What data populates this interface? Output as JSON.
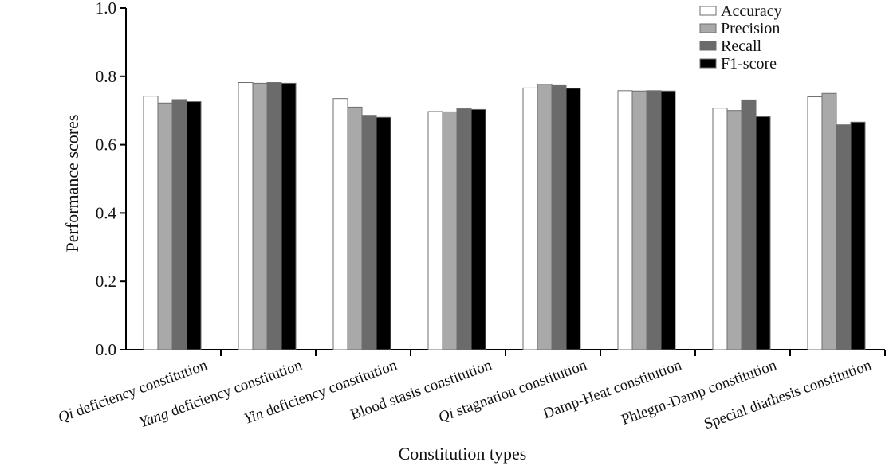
{
  "chart_data": {
    "type": "bar",
    "title": "",
    "xlabel": "Constitution types",
    "ylabel": "Performance scores",
    "ylim": [
      0,
      1.0
    ],
    "yticks": [
      "0.0",
      "0.2",
      "0.4",
      "0.6",
      "0.8",
      "1.0"
    ],
    "grid": false,
    "legend_position": "top-right",
    "categories": [
      {
        "italic": "Qi",
        "rest": " deficiency constitution"
      },
      {
        "italic": "Yang",
        "rest": " deficiency constitution"
      },
      {
        "italic": "Yin",
        "rest": " deficiency constitution"
      },
      {
        "italic": "",
        "rest": "Blood stasis constitution"
      },
      {
        "italic": "Qi",
        "rest": " stagnation constitution"
      },
      {
        "italic": "",
        "rest": "Damp-Heat constitution"
      },
      {
        "italic": "",
        "rest": "Phlegm-Damp constitution"
      },
      {
        "italic": "",
        "rest": "Special diathesis constitution"
      }
    ],
    "series": [
      {
        "name": "Accuracy",
        "color": "#ffffff",
        "values": [
          0.742,
          0.782,
          0.735,
          0.697,
          0.766,
          0.758,
          0.707,
          0.74
        ]
      },
      {
        "name": "Precision",
        "color": "#a9a9a9",
        "values": [
          0.722,
          0.78,
          0.71,
          0.696,
          0.777,
          0.757,
          0.7,
          0.75
        ]
      },
      {
        "name": "Recall",
        "color": "#6b6b6b",
        "values": [
          0.732,
          0.782,
          0.686,
          0.705,
          0.773,
          0.758,
          0.731,
          0.658
        ]
      },
      {
        "name": "F1-score",
        "color": "#000000",
        "values": [
          0.726,
          0.78,
          0.68,
          0.703,
          0.765,
          0.757,
          0.682,
          0.666
        ]
      }
    ]
  }
}
